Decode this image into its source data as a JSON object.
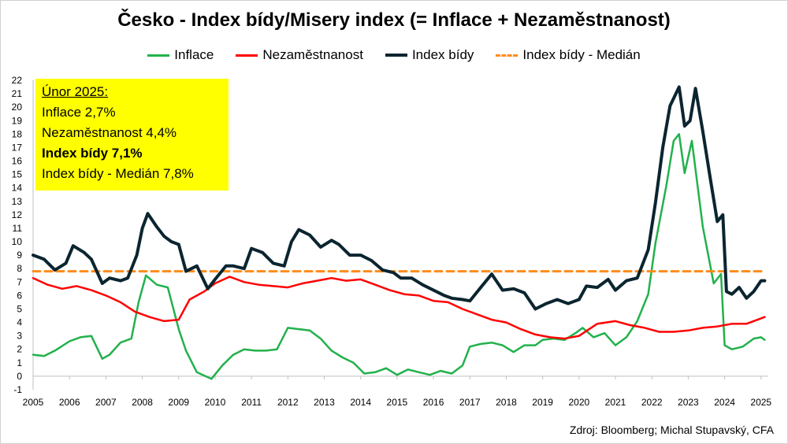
{
  "title": "Česko - Index bídy/Misery index (= Inflace + Nezaměstnanost)",
  "legend": {
    "inflace": "Inflace",
    "nezam": "Nezaměstnanost",
    "index": "Index bídy",
    "median": "Index bídy - Medián"
  },
  "infobox": {
    "heading": "Únor 2025:",
    "line1": "Inflace 2,7%",
    "line2": "Nezaměstnanost 4,4%",
    "line3": "Index bídy 7,1%",
    "line4": "Index bídy - Medián 7,8%"
  },
  "source": "Zdroj: Bloomberg; Michal Stupavský, CFA",
  "colors": {
    "inflace": "#22b14c",
    "nezam": "#ff0000",
    "index": "#0b2530",
    "median": "#ff8c1a",
    "infobox": "#ffff00"
  },
  "chart_data": {
    "type": "line",
    "title": "Česko - Index bídy/Misery index (= Inflace + Nezaměstnanost)",
    "xlabel": "",
    "ylabel": "",
    "xlim": [
      2005,
      2025.2
    ],
    "ylim": [
      -1,
      22
    ],
    "x_ticks": [
      "2005",
      "2006",
      "2007",
      "2008",
      "2009",
      "2010",
      "2011",
      "2012",
      "2013",
      "2014",
      "2015",
      "2016",
      "2017",
      "2018",
      "2019",
      "2020",
      "2021",
      "2022",
      "2023",
      "2024",
      "2025"
    ],
    "y_ticks": [
      "-1",
      "0",
      "1",
      "2",
      "3",
      "4",
      "5",
      "6",
      "7",
      "8",
      "9",
      "10",
      "11",
      "12",
      "13",
      "14",
      "15",
      "16",
      "17",
      "18",
      "19",
      "20",
      "21",
      "22"
    ],
    "grid": false,
    "legend_position": "top",
    "series": [
      {
        "name": "Inflace",
        "color": "#22b14c",
        "x": [
          2005.0,
          2005.3,
          2005.6,
          2006.0,
          2006.3,
          2006.6,
          2006.9,
          2007.1,
          2007.4,
          2007.7,
          2007.9,
          2008.1,
          2008.4,
          2008.7,
          2009.0,
          2009.2,
          2009.5,
          2009.9,
          2010.2,
          2010.5,
          2010.8,
          2011.1,
          2011.4,
          2011.7,
          2012.0,
          2012.3,
          2012.6,
          2012.9,
          2013.2,
          2013.5,
          2013.8,
          2014.1,
          2014.4,
          2014.7,
          2015.0,
          2015.3,
          2015.6,
          2015.9,
          2016.2,
          2016.5,
          2016.8,
          2017.0,
          2017.3,
          2017.6,
          2017.9,
          2018.2,
          2018.5,
          2018.8,
          2019.0,
          2019.3,
          2019.6,
          2019.9,
          2020.1,
          2020.4,
          2020.7,
          2021.0,
          2021.3,
          2021.6,
          2021.9,
          2022.1,
          2022.4,
          2022.6,
          2022.75,
          2022.9,
          2023.1,
          2023.4,
          2023.7,
          2023.9,
          2024.0,
          2024.2,
          2024.5,
          2024.8,
          2025.0,
          2025.1
        ],
        "values": [
          1.6,
          1.5,
          1.9,
          2.6,
          2.9,
          3.0,
          1.3,
          1.6,
          2.5,
          2.8,
          5.5,
          7.5,
          6.8,
          6.6,
          3.5,
          1.9,
          0.3,
          -0.2,
          0.8,
          1.6,
          2.0,
          1.9,
          1.9,
          2.0,
          3.6,
          3.5,
          3.4,
          2.8,
          1.9,
          1.4,
          1.0,
          0.2,
          0.3,
          0.6,
          0.1,
          0.5,
          0.3,
          0.1,
          0.4,
          0.2,
          0.8,
          2.2,
          2.4,
          2.5,
          2.3,
          1.8,
          2.3,
          2.3,
          2.7,
          2.8,
          2.7,
          3.2,
          3.6,
          2.9,
          3.2,
          2.3,
          2.9,
          4.1,
          6.1,
          9.9,
          14.2,
          17.5,
          18.0,
          15.1,
          17.5,
          11.1,
          6.9,
          7.6,
          2.3,
          2.0,
          2.2,
          2.8,
          2.9,
          2.7
        ]
      },
      {
        "name": "Nezaměstnanost",
        "color": "#ff0000",
        "x": [
          2005.0,
          2005.4,
          2005.8,
          2006.2,
          2006.6,
          2007.0,
          2007.4,
          2007.8,
          2008.2,
          2008.6,
          2009.0,
          2009.3,
          2009.7,
          2010.0,
          2010.4,
          2010.8,
          2011.2,
          2011.6,
          2012.0,
          2012.4,
          2012.8,
          2013.2,
          2013.6,
          2014.0,
          2014.4,
          2014.8,
          2015.2,
          2015.6,
          2016.0,
          2016.4,
          2016.8,
          2017.2,
          2017.6,
          2018.0,
          2018.4,
          2018.8,
          2019.2,
          2019.6,
          2020.0,
          2020.5,
          2021.0,
          2021.4,
          2021.8,
          2022.2,
          2022.6,
          2023.0,
          2023.4,
          2023.8,
          2024.2,
          2024.6,
          2025.0,
          2025.1
        ],
        "values": [
          7.3,
          6.8,
          6.5,
          6.7,
          6.4,
          6.0,
          5.5,
          4.8,
          4.4,
          4.1,
          4.2,
          5.7,
          6.3,
          6.9,
          7.4,
          7.0,
          6.8,
          6.7,
          6.6,
          6.9,
          7.1,
          7.3,
          7.1,
          7.2,
          6.8,
          6.4,
          6.1,
          6.0,
          5.6,
          5.5,
          5.0,
          4.6,
          4.2,
          4.0,
          3.5,
          3.1,
          2.9,
          2.8,
          3.0,
          3.9,
          4.1,
          3.8,
          3.6,
          3.3,
          3.3,
          3.4,
          3.6,
          3.7,
          3.9,
          3.9,
          4.3,
          4.4
        ]
      },
      {
        "name": "Index bídy",
        "color": "#0b2530",
        "x": [
          2005.0,
          2005.3,
          2005.6,
          2005.9,
          2006.1,
          2006.4,
          2006.6,
          2006.9,
          2007.1,
          2007.4,
          2007.6,
          2007.85,
          2008.0,
          2008.15,
          2008.4,
          2008.6,
          2008.8,
          2009.0,
          2009.2,
          2009.5,
          2009.8,
          2010.0,
          2010.3,
          2010.5,
          2010.8,
          2011.0,
          2011.3,
          2011.6,
          2011.9,
          2012.1,
          2012.3,
          2012.6,
          2012.9,
          2013.2,
          2013.4,
          2013.7,
          2014.0,
          2014.3,
          2014.6,
          2014.9,
          2015.1,
          2015.4,
          2015.7,
          2016.0,
          2016.3,
          2016.5,
          2016.8,
          2017.0,
          2017.3,
          2017.6,
          2017.9,
          2018.2,
          2018.5,
          2018.8,
          2019.1,
          2019.4,
          2019.7,
          2020.0,
          2020.2,
          2020.5,
          2020.8,
          2021.0,
          2021.3,
          2021.6,
          2021.9,
          2022.1,
          2022.3,
          2022.5,
          2022.75,
          2022.9,
          2023.05,
          2023.2,
          2023.4,
          2023.6,
          2023.8,
          2023.95,
          2024.05,
          2024.2,
          2024.4,
          2024.6,
          2024.8,
          2025.0,
          2025.1
        ],
        "values": [
          9.0,
          8.7,
          7.9,
          8.4,
          9.7,
          9.2,
          8.7,
          6.9,
          7.3,
          7.1,
          7.3,
          9.0,
          11.0,
          12.1,
          11.1,
          10.4,
          10.0,
          9.8,
          7.8,
          8.2,
          6.5,
          7.2,
          8.2,
          8.2,
          8.0,
          9.5,
          9.2,
          8.4,
          8.2,
          10.0,
          10.9,
          10.5,
          9.6,
          10.1,
          9.8,
          9.0,
          9.0,
          8.6,
          7.9,
          7.7,
          7.3,
          7.3,
          6.8,
          6.4,
          6.0,
          5.8,
          5.7,
          5.6,
          6.6,
          7.6,
          6.4,
          6.5,
          6.2,
          5.0,
          5.4,
          5.7,
          5.4,
          5.7,
          6.7,
          6.6,
          7.2,
          6.4,
          7.1,
          7.3,
          9.4,
          12.9,
          17.0,
          20.1,
          21.5,
          18.6,
          19.0,
          21.4,
          18.2,
          14.8,
          11.5,
          12.0,
          6.3,
          6.1,
          6.6,
          5.8,
          6.3,
          7.1,
          7.1
        ]
      },
      {
        "name": "Index bídy - Medián",
        "color": "#ff8c1a",
        "x": [
          2005.0,
          2025.1
        ],
        "values": [
          7.8,
          7.8
        ]
      }
    ]
  }
}
